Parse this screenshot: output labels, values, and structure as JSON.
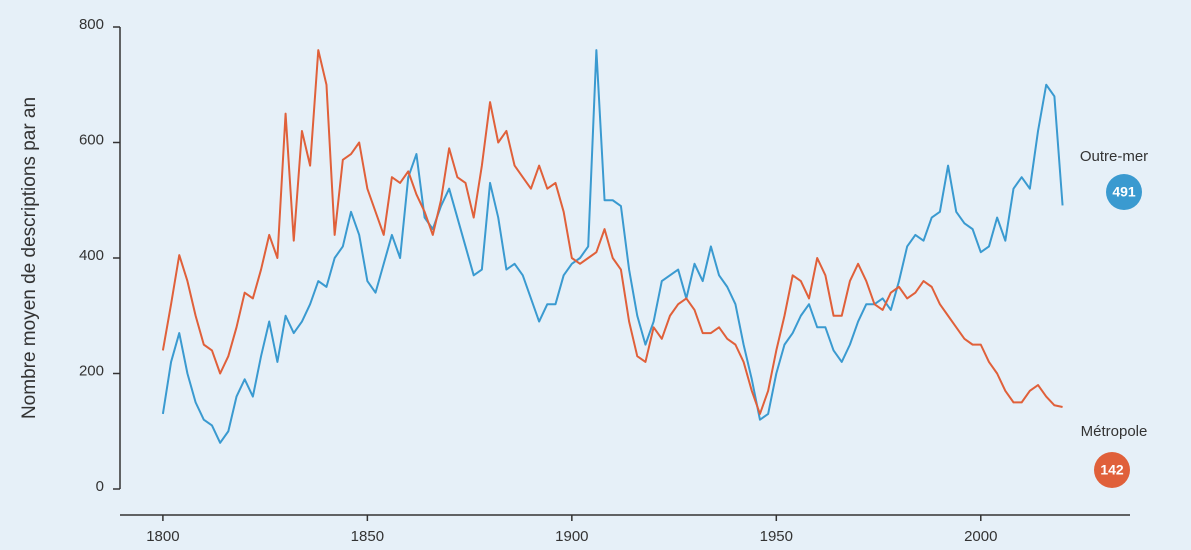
{
  "chart_data": {
    "type": "line",
    "y_label": "Nombre moyen de descriptions par an",
    "x": [
      1800,
      1802,
      1804,
      1806,
      1808,
      1810,
      1812,
      1814,
      1816,
      1818,
      1820,
      1822,
      1824,
      1826,
      1828,
      1830,
      1832,
      1834,
      1836,
      1838,
      1840,
      1842,
      1844,
      1846,
      1848,
      1850,
      1852,
      1854,
      1856,
      1858,
      1860,
      1862,
      1864,
      1866,
      1868,
      1870,
      1872,
      1874,
      1876,
      1878,
      1880,
      1882,
      1884,
      1886,
      1888,
      1890,
      1892,
      1894,
      1896,
      1898,
      1900,
      1902,
      1904,
      1906,
      1908,
      1910,
      1912,
      1914,
      1916,
      1918,
      1920,
      1922,
      1924,
      1926,
      1928,
      1930,
      1932,
      1934,
      1936,
      1938,
      1940,
      1942,
      1944,
      1946,
      1948,
      1950,
      1952,
      1954,
      1956,
      1958,
      1960,
      1962,
      1964,
      1966,
      1968,
      1970,
      1972,
      1974,
      1976,
      1978,
      1980,
      1982,
      1984,
      1986,
      1988,
      1990,
      1992,
      1994,
      1996,
      1998,
      2000,
      2002,
      2004,
      2006,
      2008,
      2010,
      2012,
      2014,
      2016,
      2018,
      2020
    ],
    "series": [
      {
        "name": "Outre-mer",
        "color": "#3a9ad0",
        "values": [
          130,
          220,
          270,
          200,
          150,
          120,
          110,
          80,
          100,
          160,
          190,
          160,
          230,
          290,
          220,
          300,
          270,
          290,
          320,
          360,
          350,
          400,
          420,
          480,
          440,
          360,
          340,
          390,
          440,
          400,
          540,
          580,
          470,
          450,
          490,
          520,
          470,
          420,
          370,
          380,
          530,
          470,
          380,
          390,
          370,
          330,
          290,
          320,
          320,
          370,
          390,
          400,
          420,
          760,
          500,
          500,
          490,
          380,
          300,
          250,
          290,
          360,
          370,
          380,
          330,
          390,
          360,
          420,
          370,
          350,
          320,
          250,
          190,
          120,
          130,
          200,
          250,
          270,
          300,
          320,
          280,
          280,
          240,
          220,
          250,
          290,
          320,
          320,
          330,
          310,
          360,
          420,
          440,
          430,
          470,
          480,
          560,
          480,
          460,
          450,
          410,
          420,
          470,
          430,
          520,
          540,
          520,
          620,
          700,
          680,
          491
        ]
      },
      {
        "name": "Métropole",
        "color": "#e0603a",
        "values": [
          240,
          320,
          405,
          360,
          300,
          250,
          240,
          200,
          230,
          280,
          340,
          330,
          380,
          440,
          400,
          650,
          430,
          620,
          560,
          760,
          700,
          440,
          570,
          580,
          600,
          520,
          480,
          440,
          540,
          530,
          550,
          510,
          480,
          440,
          500,
          590,
          540,
          530,
          470,
          560,
          670,
          600,
          620,
          560,
          540,
          520,
          560,
          520,
          530,
          480,
          400,
          390,
          400,
          410,
          450,
          400,
          380,
          290,
          230,
          220,
          280,
          260,
          300,
          320,
          330,
          310,
          270,
          270,
          280,
          260,
          250,
          220,
          170,
          130,
          170,
          240,
          300,
          370,
          360,
          330,
          400,
          370,
          300,
          300,
          360,
          390,
          360,
          320,
          310,
          340,
          350,
          330,
          340,
          360,
          350,
          320,
          300,
          280,
          260,
          250,
          250,
          220,
          200,
          170,
          150,
          150,
          170,
          180,
          160,
          145,
          142
        ]
      }
    ],
    "xlim": [
      1790,
      2036
    ],
    "xticks": [
      1800,
      1850,
      1900,
      1950,
      2000
    ],
    "ylim": [
      0,
      800
    ],
    "yticks": [
      0,
      200,
      400,
      600,
      800
    ]
  }
}
